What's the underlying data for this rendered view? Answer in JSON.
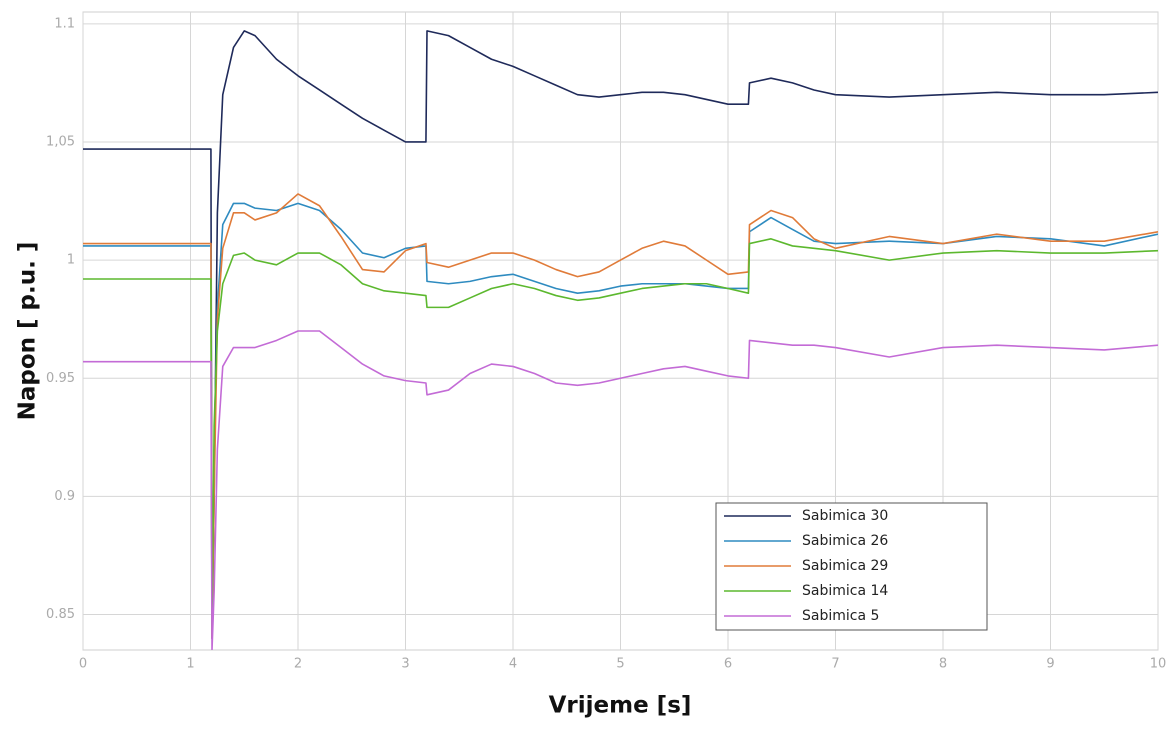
{
  "chart_data": {
    "type": "line",
    "x_label": "Vrijeme [s]",
    "y_label": "Napon [ p.u. ]",
    "xlim": [
      0,
      10
    ],
    "ylim": [
      0.835,
      1.105
    ],
    "xticks": [
      0,
      1,
      2,
      3,
      4,
      5,
      6,
      7,
      8,
      9,
      10
    ],
    "yticks": [
      0.85,
      0.9,
      0.95,
      1,
      {
        "value": 1.05,
        "label": "1,05"
      },
      1.1
    ],
    "grid": true,
    "legend": "lower right",
    "x": [
      0,
      1.19,
      1.2,
      1.22,
      1.25,
      1.3,
      1.4,
      1.5,
      1.6,
      1.8,
      2.0,
      2.2,
      2.4,
      2.6,
      2.8,
      3.0,
      3.19,
      3.2,
      3.4,
      3.6,
      3.8,
      4.0,
      4.2,
      4.4,
      4.6,
      4.8,
      5.0,
      5.2,
      5.4,
      5.6,
      5.8,
      6.0,
      6.19,
      6.2,
      6.4,
      6.6,
      6.8,
      7.0,
      7.5,
      8.0,
      8.5,
      9.0,
      9.5,
      10
    ],
    "series": [
      {
        "name": "Sabimica 30",
        "color": "#1f2a5a",
        "values": [
          1.047,
          1.047,
          0.84,
          0.9,
          1.02,
          1.07,
          1.09,
          1.097,
          1.095,
          1.085,
          1.078,
          1.072,
          1.066,
          1.06,
          1.055,
          1.05,
          1.05,
          1.097,
          1.095,
          1.09,
          1.085,
          1.082,
          1.078,
          1.074,
          1.07,
          1.069,
          1.07,
          1.071,
          1.071,
          1.07,
          1.068,
          1.066,
          1.066,
          1.075,
          1.077,
          1.075,
          1.072,
          1.07,
          1.069,
          1.07,
          1.071,
          1.07,
          1.07,
          1.071
        ]
      },
      {
        "name": "Sabimica 26",
        "color": "#2e8bc0",
        "values": [
          1.006,
          1.006,
          0.84,
          0.92,
          0.98,
          1.015,
          1.024,
          1.024,
          1.022,
          1.021,
          1.024,
          1.021,
          1.013,
          1.003,
          1.001,
          1.005,
          1.006,
          0.991,
          0.99,
          0.991,
          0.993,
          0.994,
          0.991,
          0.988,
          0.986,
          0.987,
          0.989,
          0.99,
          0.99,
          0.99,
          0.989,
          0.988,
          0.988,
          1.012,
          1.018,
          1.013,
          1.008,
          1.007,
          1.008,
          1.007,
          1.01,
          1.009,
          1.006,
          1.011
        ]
      },
      {
        "name": "Sabimica 29",
        "color": "#e07b39",
        "values": [
          1.007,
          1.007,
          0.84,
          0.9,
          0.975,
          1.005,
          1.02,
          1.02,
          1.017,
          1.02,
          1.028,
          1.023,
          1.01,
          0.996,
          0.995,
          1.004,
          1.007,
          0.999,
          0.997,
          1.0,
          1.003,
          1.003,
          1.0,
          0.996,
          0.993,
          0.995,
          1.0,
          1.005,
          1.008,
          1.006,
          1.0,
          0.994,
          0.995,
          1.015,
          1.021,
          1.018,
          1.009,
          1.005,
          1.01,
          1.007,
          1.011,
          1.008,
          1.008,
          1.012
        ]
      },
      {
        "name": "Sabimica 14",
        "color": "#5cb82e",
        "values": [
          0.992,
          0.992,
          0.845,
          0.93,
          0.97,
          0.99,
          1.002,
          1.003,
          1.0,
          0.998,
          1.003,
          1.003,
          0.998,
          0.99,
          0.987,
          0.986,
          0.985,
          0.98,
          0.98,
          0.984,
          0.988,
          0.99,
          0.988,
          0.985,
          0.983,
          0.984,
          0.986,
          0.988,
          0.989,
          0.99,
          0.99,
          0.988,
          0.986,
          1.007,
          1.009,
          1.006,
          1.005,
          1.004,
          1.0,
          1.003,
          1.004,
          1.003,
          1.003,
          1.004
        ]
      },
      {
        "name": "Sabimica 5",
        "color": "#c36bd6",
        "values": [
          0.957,
          0.957,
          0.835,
          0.86,
          0.92,
          0.955,
          0.963,
          0.963,
          0.963,
          0.966,
          0.97,
          0.97,
          0.963,
          0.956,
          0.951,
          0.949,
          0.948,
          0.943,
          0.945,
          0.952,
          0.956,
          0.955,
          0.952,
          0.948,
          0.947,
          0.948,
          0.95,
          0.952,
          0.954,
          0.955,
          0.953,
          0.951,
          0.95,
          0.966,
          0.965,
          0.964,
          0.964,
          0.963,
          0.959,
          0.963,
          0.964,
          0.963,
          0.962,
          0.964
        ]
      }
    ]
  }
}
